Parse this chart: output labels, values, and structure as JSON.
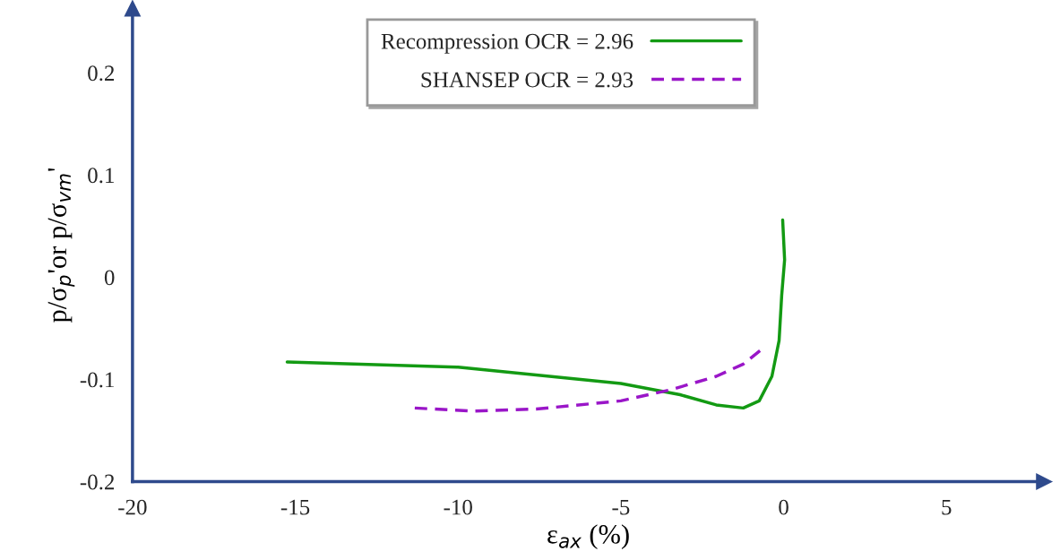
{
  "chart_data": {
    "type": "line",
    "xlabel": "ε$_{ax}$ (%)",
    "ylabel": "p/σ$_{p}$'or p/σ$_{vm}$'",
    "xlim": [
      -20,
      8
    ],
    "ylim": [
      -0.2,
      0.263
    ],
    "xticks": [
      -20,
      -15,
      -10,
      -5,
      0,
      5
    ],
    "yticks": [
      -0.2,
      -0.1,
      0,
      0.1,
      0.2
    ],
    "grid": false,
    "legend": "top",
    "series": [
      {
        "name": "Recompression OCR = 2.96",
        "color": "#139a13",
        "line_style": "solid",
        "x": [
          -15.25,
          -10,
          -5,
          -3.18,
          -2.07,
          -1.24,
          -0.75,
          -0.36,
          -0.14,
          -0.06,
          0.03,
          -0.03
        ],
        "values": [
          -0.083,
          -0.088,
          -0.104,
          -0.115,
          -0.125,
          -0.128,
          -0.121,
          -0.097,
          -0.062,
          -0.018,
          0.017,
          0.056
        ]
      },
      {
        "name": "SHANSEP OCR = 2.93",
        "color": "#9a16c8",
        "line_style": "dashed",
        "x": [
          -11.33,
          -9.56,
          -7.6,
          -5,
          -3.45,
          -2.07,
          -1.24,
          -0.69
        ],
        "values": [
          -0.128,
          -0.131,
          -0.129,
          -0.121,
          -0.11,
          -0.097,
          -0.085,
          -0.071
        ]
      }
    ]
  }
}
